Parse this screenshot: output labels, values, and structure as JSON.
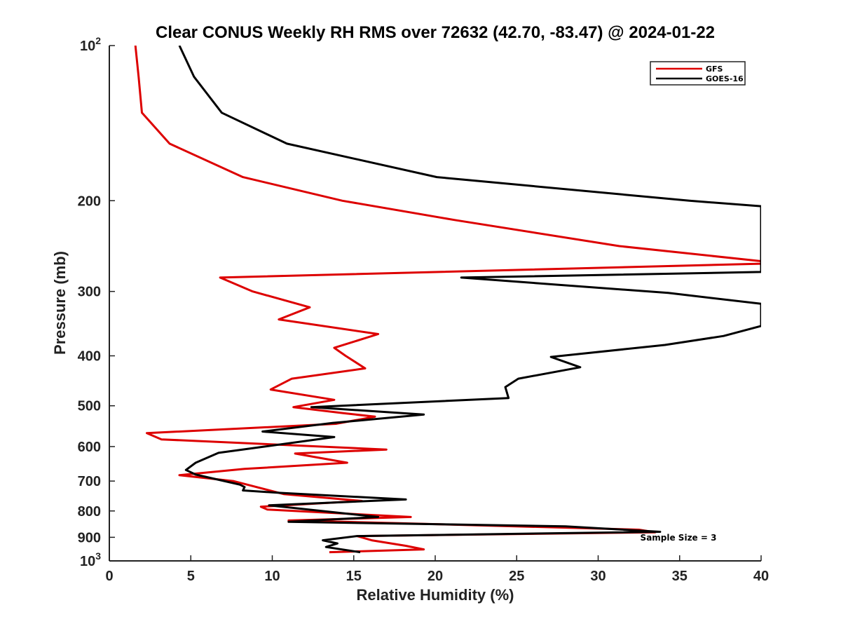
{
  "chart_data": {
    "type": "line",
    "title": "Clear CONUS Weekly RH RMS over 72632 (42.70, -83.47) @ 2024-01-22",
    "xlabel": "Relative Humidity (%)",
    "ylabel": "Pressure (mb)",
    "xlim": [
      0,
      40
    ],
    "ylim": [
      100,
      1000
    ],
    "y_scale": "log",
    "y_reversed": true,
    "x_ticks": [
      0,
      5,
      10,
      15,
      20,
      25,
      30,
      35,
      40
    ],
    "y_ticks": [
      {
        "value": 100,
        "base": "10",
        "exp": "2"
      },
      {
        "value": 200,
        "label": "200"
      },
      {
        "value": 300,
        "label": "300"
      },
      {
        "value": 400,
        "label": "400"
      },
      {
        "value": 500,
        "label": "500"
      },
      {
        "value": 600,
        "label": "600"
      },
      {
        "value": 700,
        "label": "700"
      },
      {
        "value": 800,
        "label": "800"
      },
      {
        "value": 900,
        "label": "900"
      },
      {
        "value": 1000,
        "base": "10",
        "exp": "3"
      }
    ],
    "grid": false,
    "legend_position": "top-right",
    "annotation": "Sample Size = 3",
    "series": [
      {
        "name": "GFS",
        "color": "#dd0000",
        "points": [
          [
            1.6,
            100
          ],
          [
            1.8,
            115
          ],
          [
            2.0,
            135
          ],
          [
            3.7,
            155
          ],
          [
            8.2,
            180
          ],
          [
            14.3,
            200
          ],
          [
            21.2,
            218
          ],
          [
            31.3,
            245
          ],
          [
            40,
            262
          ],
          [
            40,
            265
          ],
          [
            6.8,
            282
          ],
          [
            8.8,
            300
          ],
          [
            12.3,
            322
          ],
          [
            10.4,
            340
          ],
          [
            16.5,
            363
          ],
          [
            13.8,
            386
          ],
          [
            14.5,
            400
          ],
          [
            15.7,
            423
          ],
          [
            11.2,
            443
          ],
          [
            9.9,
            465
          ],
          [
            13.8,
            487
          ],
          [
            11.3,
            503
          ],
          [
            14.4,
            517
          ],
          [
            16.3,
            525
          ],
          [
            13.9,
            542
          ],
          [
            2.3,
            565
          ],
          [
            3.2,
            581
          ],
          [
            17.0,
            608
          ],
          [
            11.4,
            619
          ],
          [
            14.6,
            645
          ],
          [
            8.3,
            663
          ],
          [
            4.3,
            682
          ],
          [
            7.6,
            700
          ],
          [
            10.7,
            742
          ],
          [
            15.5,
            765
          ],
          [
            9.3,
            785
          ],
          [
            9.7,
            795
          ],
          [
            18.5,
            822
          ],
          [
            11.0,
            835
          ],
          [
            17.8,
            845
          ],
          [
            32.5,
            870
          ],
          [
            33.5,
            880
          ],
          [
            15.2,
            895
          ],
          [
            16.1,
            912
          ],
          [
            18.2,
            935
          ],
          [
            19.3,
            950
          ],
          [
            13.5,
            962
          ]
        ]
      },
      {
        "name": "GOES-16",
        "color": "#000000",
        "points": [
          [
            4.3,
            100
          ],
          [
            5.2,
            115
          ],
          [
            6.9,
            135
          ],
          [
            10.9,
            155
          ],
          [
            20.1,
            180
          ],
          [
            35.6,
            200
          ],
          [
            40,
            205
          ],
          [
            40,
            275
          ],
          [
            21.6,
            282
          ],
          [
            34.3,
            302
          ],
          [
            40,
            317
          ],
          [
            40,
            350
          ],
          [
            37.7,
            366
          ],
          [
            34.1,
            381
          ],
          [
            27.1,
            402
          ],
          [
            28.9,
            421
          ],
          [
            25.1,
            443
          ],
          [
            24.3,
            460
          ],
          [
            24.5,
            483
          ],
          [
            12.4,
            503
          ],
          [
            19.3,
            520
          ],
          [
            13.7,
            540
          ],
          [
            9.4,
            561
          ],
          [
            13.8,
            575
          ],
          [
            6.7,
            617
          ],
          [
            5.3,
            645
          ],
          [
            4.7,
            666
          ],
          [
            5.3,
            680
          ],
          [
            8.0,
            711
          ],
          [
            8.3,
            719
          ],
          [
            8.2,
            730
          ],
          [
            10.5,
            738
          ],
          [
            18.2,
            760
          ],
          [
            9.8,
            780
          ],
          [
            16.5,
            822
          ],
          [
            11.0,
            840
          ],
          [
            28.0,
            857
          ],
          [
            33.8,
            878
          ],
          [
            15.2,
            895
          ],
          [
            13.1,
            912
          ],
          [
            14.0,
            925
          ],
          [
            13.3,
            940
          ],
          [
            15.4,
            962
          ]
        ]
      }
    ]
  }
}
